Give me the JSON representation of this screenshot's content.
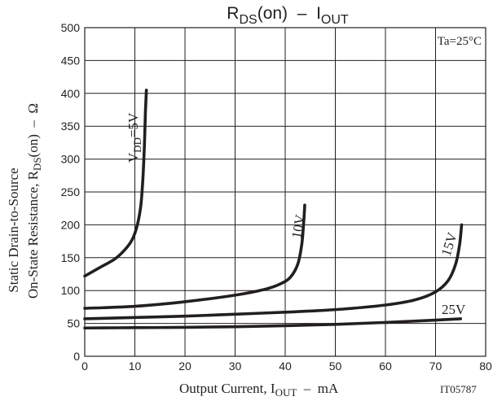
{
  "chart_data": {
    "type": "line",
    "title_main": "R",
    "title_sub": "DS",
    "title_rest": "(on)  –  I",
    "title_sub2": "OUT",
    "annotation": "Ta=25°C",
    "footnote": "IT05787",
    "xlabel_main": "Output Current, I",
    "xlabel_sub": "OUT",
    "xlabel_rest": "  –  mA",
    "ylabel_line1": "Static Drain-to-Source",
    "ylabel_line2_main": "On-State Resistance, R",
    "ylabel_line2_sub": "DS",
    "ylabel_line2_rest": "(on)  –  Ω",
    "xlim": [
      0,
      80
    ],
    "ylim": [
      0,
      500
    ],
    "xticks": [
      0,
      10,
      20,
      30,
      40,
      50,
      60,
      70,
      80
    ],
    "yticks": [
      0,
      50,
      100,
      150,
      200,
      250,
      300,
      350,
      400,
      450,
      500
    ],
    "grid": true,
    "series": [
      {
        "name_main": "V",
        "name_sub": "DD",
        "name_rest": "=5V",
        "x": [
          0,
          3,
          6,
          8,
          9.5,
          10.5,
          11.2,
          11.6,
          11.9,
          12.1,
          12.3
        ],
        "y": [
          122,
          135,
          148,
          162,
          178,
          200,
          230,
          270,
          320,
          370,
          405
        ]
      },
      {
        "name": "10V",
        "x": [
          0,
          10,
          20,
          30,
          36,
          39,
          41,
          42.5,
          43.3,
          43.7,
          43.9
        ],
        "y": [
          73,
          76,
          83,
          93,
          102,
          110,
          120,
          140,
          170,
          205,
          230
        ]
      },
      {
        "name": "15V",
        "x": [
          0,
          10,
          20,
          30,
          40,
          50,
          60,
          66,
          70,
          72.5,
          74,
          74.8,
          75.2
        ],
        "y": [
          57,
          59,
          61,
          64,
          67,
          71,
          78,
          86,
          98,
          115,
          140,
          170,
          200
        ]
      },
      {
        "name": "25V",
        "x": [
          0,
          10,
          20,
          30,
          40,
          50,
          60,
          70,
          75
        ],
        "y": [
          43,
          43.5,
          44,
          45,
          46.5,
          48.5,
          51.5,
          55,
          57
        ]
      }
    ]
  }
}
